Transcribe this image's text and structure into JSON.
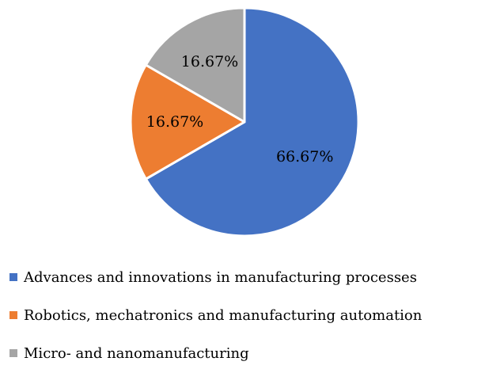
{
  "chart_data": {
    "type": "pie",
    "categories": [
      "Advances and innovations in manufacturing processes",
      "Robotics, mechatronics and manufacturing automation",
      "Micro- and nanomanufacturing"
    ],
    "values": [
      66.67,
      16.67,
      16.67
    ],
    "value_labels": [
      "66.67%",
      "16.67%",
      "16.67%"
    ],
    "colors": [
      "#4472C4",
      "#ED7D31",
      "#A5A5A5"
    ],
    "legend_position": "bottom",
    "start_angle": "12 o'clock",
    "direction": "clockwise"
  }
}
